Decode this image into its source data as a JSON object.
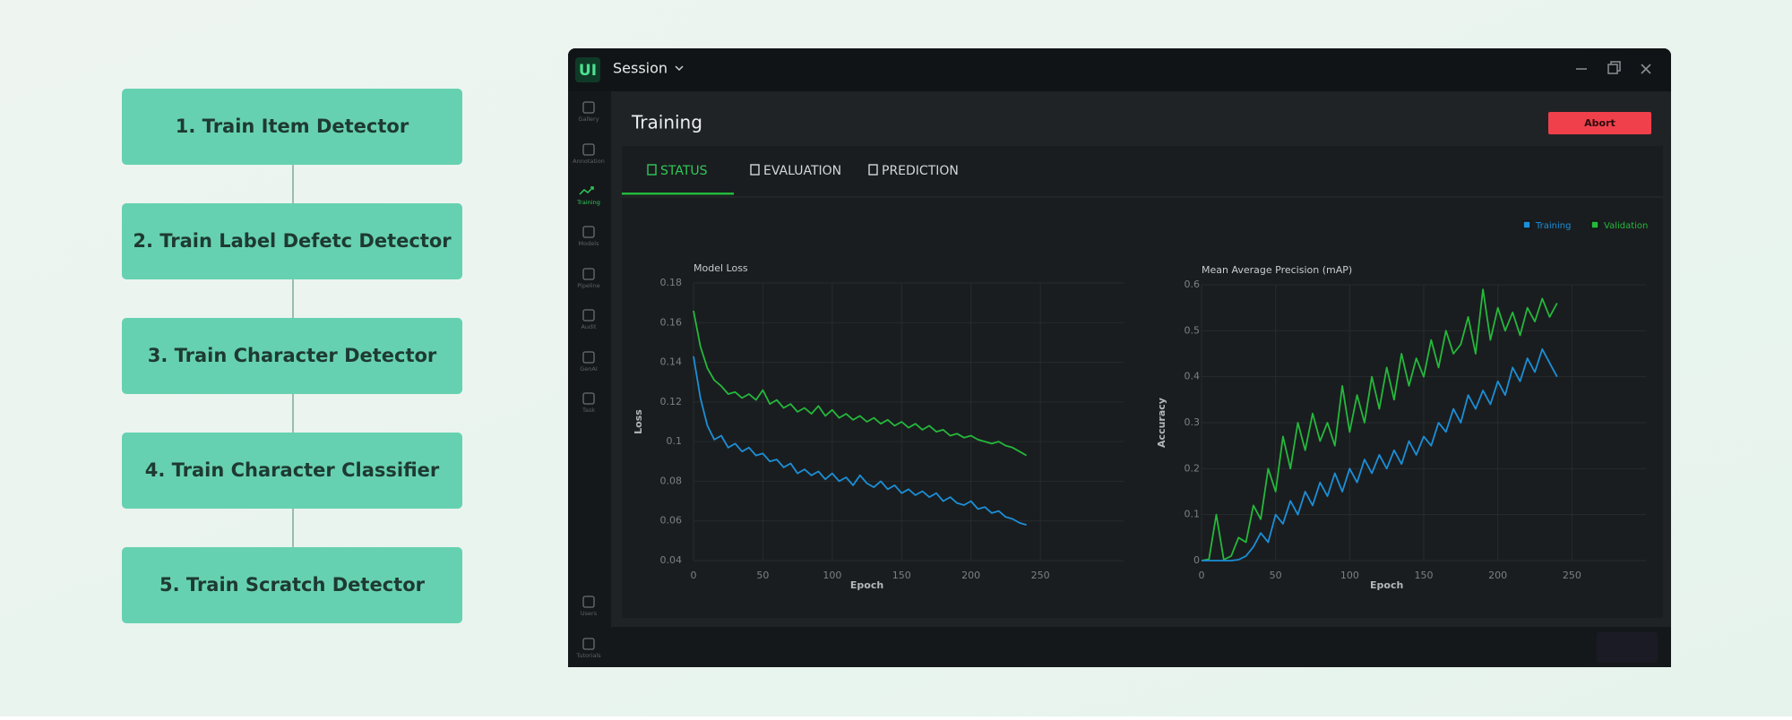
{
  "pipeline": {
    "steps": [
      "1. Train Item Detector",
      "2. Train Label Defetc Detector",
      "3. Train Character Detector",
      "4. Train Character Classifier",
      "5. Train Scratch Detector"
    ]
  },
  "app": {
    "logo": "UI",
    "session": "Session",
    "sidebar": [
      "Gallery",
      "Annotation",
      "Training",
      "Models",
      "Pipeline",
      "Audit",
      "GenAI",
      "Task",
      "Users",
      "Tutorials"
    ],
    "page_title": "Training",
    "abort": "Abort",
    "tabs": [
      "STATUS",
      "EVALUATION",
      "PREDICTION"
    ]
  },
  "chart_data": [
    {
      "type": "line",
      "title": "Model Loss",
      "xlabel": "Epoch",
      "ylabel": "Loss",
      "x": [
        0,
        5,
        10,
        15,
        20,
        25,
        30,
        35,
        40,
        45,
        50,
        55,
        60,
        65,
        70,
        75,
        80,
        85,
        90,
        95,
        100,
        105,
        110,
        115,
        120,
        125,
        130,
        135,
        140,
        145,
        150,
        155,
        160,
        165,
        170,
        175,
        180,
        185,
        190,
        195,
        200,
        205,
        210,
        215,
        220,
        225,
        230,
        235,
        240
      ],
      "series": [
        {
          "name": "Training",
          "color": "#1b8fd8",
          "values": [
            0.143,
            0.122,
            0.108,
            0.101,
            0.103,
            0.097,
            0.099,
            0.095,
            0.097,
            0.093,
            0.094,
            0.09,
            0.091,
            0.087,
            0.089,
            0.084,
            0.086,
            0.083,
            0.085,
            0.081,
            0.084,
            0.08,
            0.082,
            0.078,
            0.083,
            0.079,
            0.077,
            0.08,
            0.076,
            0.078,
            0.074,
            0.076,
            0.073,
            0.075,
            0.072,
            0.074,
            0.07,
            0.072,
            0.069,
            0.068,
            0.07,
            0.066,
            0.067,
            0.064,
            0.065,
            0.062,
            0.061,
            0.059,
            0.058
          ]
        },
        {
          "name": "Validation",
          "color": "#24b83c",
          "values": [
            0.166,
            0.148,
            0.137,
            0.131,
            0.128,
            0.124,
            0.125,
            0.122,
            0.124,
            0.121,
            0.126,
            0.119,
            0.121,
            0.117,
            0.119,
            0.115,
            0.117,
            0.114,
            0.118,
            0.113,
            0.116,
            0.112,
            0.114,
            0.111,
            0.113,
            0.11,
            0.112,
            0.109,
            0.111,
            0.108,
            0.11,
            0.107,
            0.109,
            0.106,
            0.108,
            0.105,
            0.106,
            0.103,
            0.104,
            0.102,
            0.103,
            0.101,
            0.1,
            0.099,
            0.1,
            0.098,
            0.097,
            0.095,
            0.093
          ]
        }
      ],
      "xlim": [
        0,
        310
      ],
      "ylim": [
        0.04,
        0.18
      ],
      "xticks": [
        0,
        50,
        100,
        150,
        200,
        250
      ],
      "yticks": [
        0.04,
        0.06,
        0.08,
        0.1,
        0.12,
        0.14,
        0.16,
        0.18
      ],
      "grid": true
    },
    {
      "type": "line",
      "title": "Mean Average Precision (mAP)",
      "xlabel": "Epoch",
      "ylabel": "Accuracy",
      "x": [
        0,
        5,
        10,
        15,
        20,
        25,
        30,
        35,
        40,
        45,
        50,
        55,
        60,
        65,
        70,
        75,
        80,
        85,
        90,
        95,
        100,
        105,
        110,
        115,
        120,
        125,
        130,
        135,
        140,
        145,
        150,
        155,
        160,
        165,
        170,
        175,
        180,
        185,
        190,
        195,
        200,
        205,
        210,
        215,
        220,
        225,
        230,
        235,
        240
      ],
      "series": [
        {
          "name": "Training",
          "color": "#1b8fd8",
          "values": [
            0,
            0,
            0,
            0,
            0,
            0.002,
            0.01,
            0.03,
            0.06,
            0.04,
            0.1,
            0.08,
            0.13,
            0.1,
            0.15,
            0.12,
            0.17,
            0.14,
            0.19,
            0.15,
            0.2,
            0.17,
            0.22,
            0.19,
            0.23,
            0.2,
            0.24,
            0.21,
            0.26,
            0.23,
            0.27,
            0.25,
            0.3,
            0.28,
            0.33,
            0.3,
            0.36,
            0.33,
            0.37,
            0.34,
            0.39,
            0.36,
            0.42,
            0.39,
            0.44,
            0.41,
            0.46,
            0.43,
            0.4
          ]
        },
        {
          "name": "Validation",
          "color": "#24b83c",
          "values": [
            0,
            0.003,
            0.1,
            0.002,
            0.01,
            0.05,
            0.04,
            0.12,
            0.09,
            0.2,
            0.15,
            0.27,
            0.2,
            0.3,
            0.24,
            0.32,
            0.26,
            0.3,
            0.25,
            0.38,
            0.28,
            0.36,
            0.3,
            0.4,
            0.33,
            0.42,
            0.35,
            0.45,
            0.38,
            0.44,
            0.4,
            0.48,
            0.42,
            0.5,
            0.45,
            0.47,
            0.53,
            0.45,
            0.59,
            0.48,
            0.55,
            0.5,
            0.54,
            0.49,
            0.55,
            0.52,
            0.57,
            0.53,
            0.56
          ]
        }
      ],
      "xlim": [
        0,
        300
      ],
      "ylim": [
        0,
        0.6
      ],
      "xticks": [
        0,
        50,
        100,
        150,
        200,
        250
      ],
      "yticks": [
        0,
        0.1,
        0.2,
        0.3,
        0.4,
        0.5,
        0.6
      ],
      "grid": true
    }
  ]
}
